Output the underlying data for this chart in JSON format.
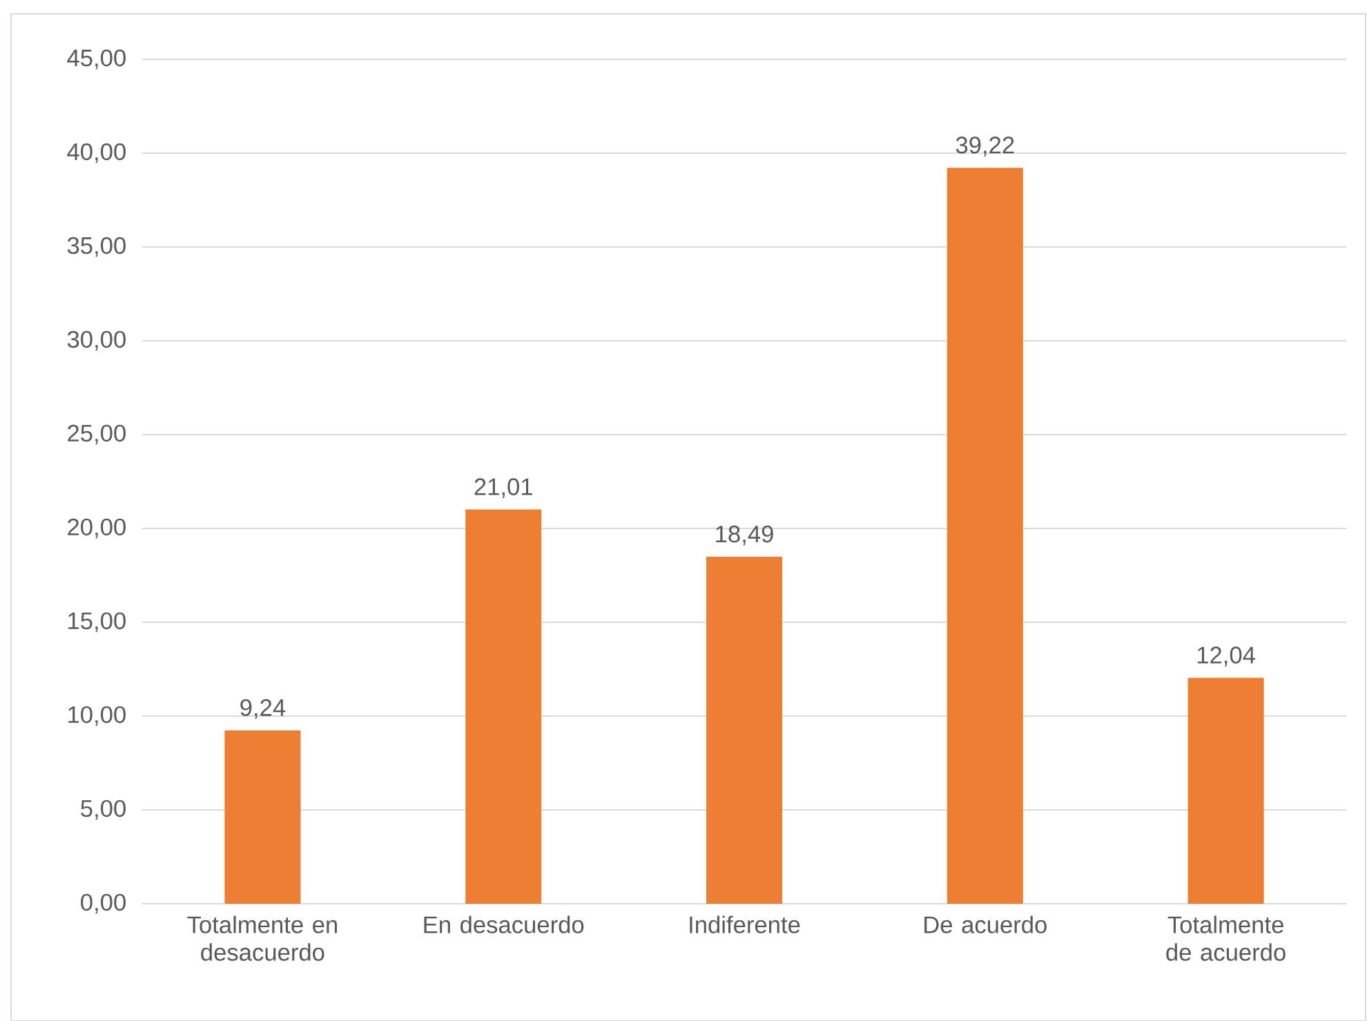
{
  "chart_data": {
    "type": "bar",
    "categories": [
      "Totalmente en desacuerdo",
      "En desacuerdo",
      "Indiferente",
      "De acuerdo",
      "Totalmente de acuerdo"
    ],
    "values": [
      9.24,
      21.01,
      18.49,
      39.22,
      12.04
    ],
    "value_labels": [
      "9,24",
      "21,01",
      "18,49",
      "39,22",
      "12,04"
    ],
    "color": "#ed7d31",
    "ylim": [
      0,
      45
    ],
    "yticks": [
      {
        "value": 0,
        "label": "0,00"
      },
      {
        "value": 5,
        "label": "5,00"
      },
      {
        "value": 10,
        "label": "10,00"
      },
      {
        "value": 15,
        "label": "15,00"
      },
      {
        "value": 20,
        "label": "20,00"
      },
      {
        "value": 25,
        "label": "25,00"
      },
      {
        "value": 30,
        "label": "30,00"
      },
      {
        "value": 35,
        "label": "35,00"
      },
      {
        "value": 40,
        "label": "40,00"
      },
      {
        "value": 45,
        "label": "45,00"
      }
    ],
    "grid": "y"
  }
}
